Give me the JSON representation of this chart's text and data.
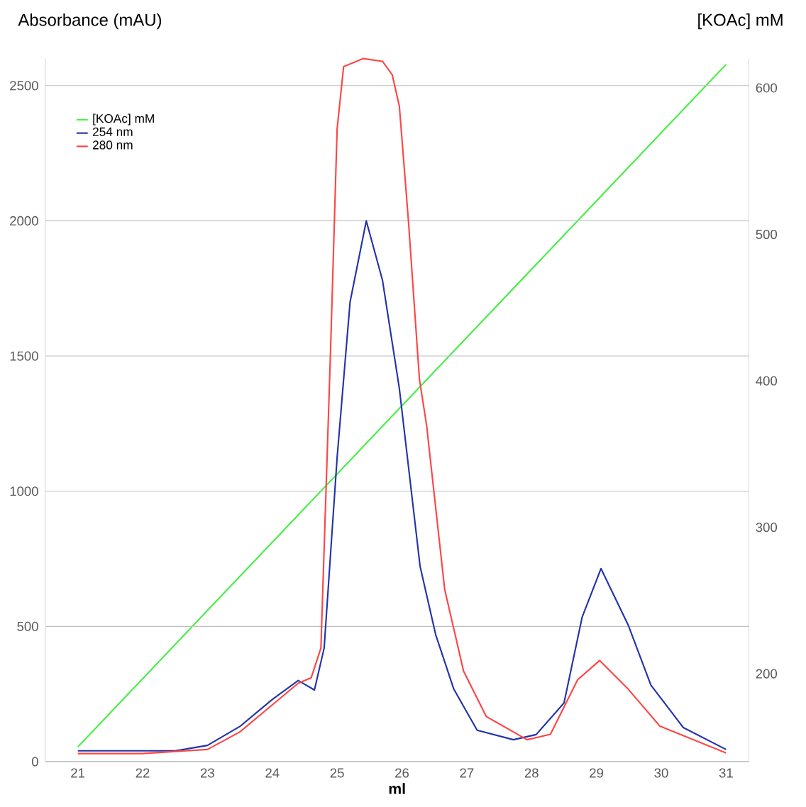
{
  "chart_data": {
    "type": "line",
    "xlabel": "ml",
    "ylabel": "Absorbance (mAU)",
    "y2label": "[KOAc] mM",
    "xlim": [
      20.5,
      31.35
    ],
    "xticks": [
      21,
      22,
      23,
      24,
      25,
      26,
      27,
      28,
      29,
      30,
      31
    ],
    "ylim": [
      0,
      2600
    ],
    "yticks": [
      0,
      500,
      1000,
      1500,
      2000,
      2500
    ],
    "y2lim": [
      140,
      620
    ],
    "y2ticks": [
      200,
      300,
      400,
      500,
      600
    ],
    "grid": "y",
    "legend": "top left",
    "series": [
      {
        "name": "[KOAc] mM",
        "color": "#44ee44",
        "axis": "y2",
        "x": [
          21,
          31
        ],
        "values": [
          150,
          616
        ]
      },
      {
        "name": "254 nm",
        "color": "#2233aa",
        "x": [
          21,
          22,
          22.5,
          23,
          23.5,
          24,
          24.4,
          24.65,
          24.8,
          25,
          25.2,
          25.45,
          25.7,
          25.96,
          26.28,
          26.52,
          26.8,
          27.16,
          27.72,
          28.07,
          28.5,
          28.78,
          29.07,
          29.49,
          29.84,
          30.34,
          31
        ],
        "values": [
          40,
          40,
          40,
          60,
          130,
          230,
          300,
          265,
          420,
          1125,
          1700,
          2000,
          1780,
          1380,
          722,
          470,
          268,
          116,
          81,
          100,
          217,
          535,
          714,
          505,
          283,
          126,
          45
        ]
      },
      {
        "name": "280 nm",
        "color": "#ff4444",
        "x": [
          21,
          22,
          23,
          23.5,
          24,
          24.4,
          24.6,
          24.75,
          24.9,
          25,
          25.1,
          25.4,
          25.7,
          25.85,
          25.96,
          26.1,
          26.27,
          26.38,
          26.66,
          26.95,
          27.3,
          27.93,
          28.29,
          28.71,
          29.05,
          29.49,
          29.98,
          31
        ],
        "values": [
          30,
          30,
          45,
          110,
          210,
          290,
          310,
          420,
          1530,
          2340,
          2570,
          2600,
          2590,
          2540,
          2424,
          2000,
          1414,
          1244,
          636,
          335,
          167,
          81,
          101,
          303,
          374,
          268,
          131,
          32
        ]
      }
    ]
  }
}
